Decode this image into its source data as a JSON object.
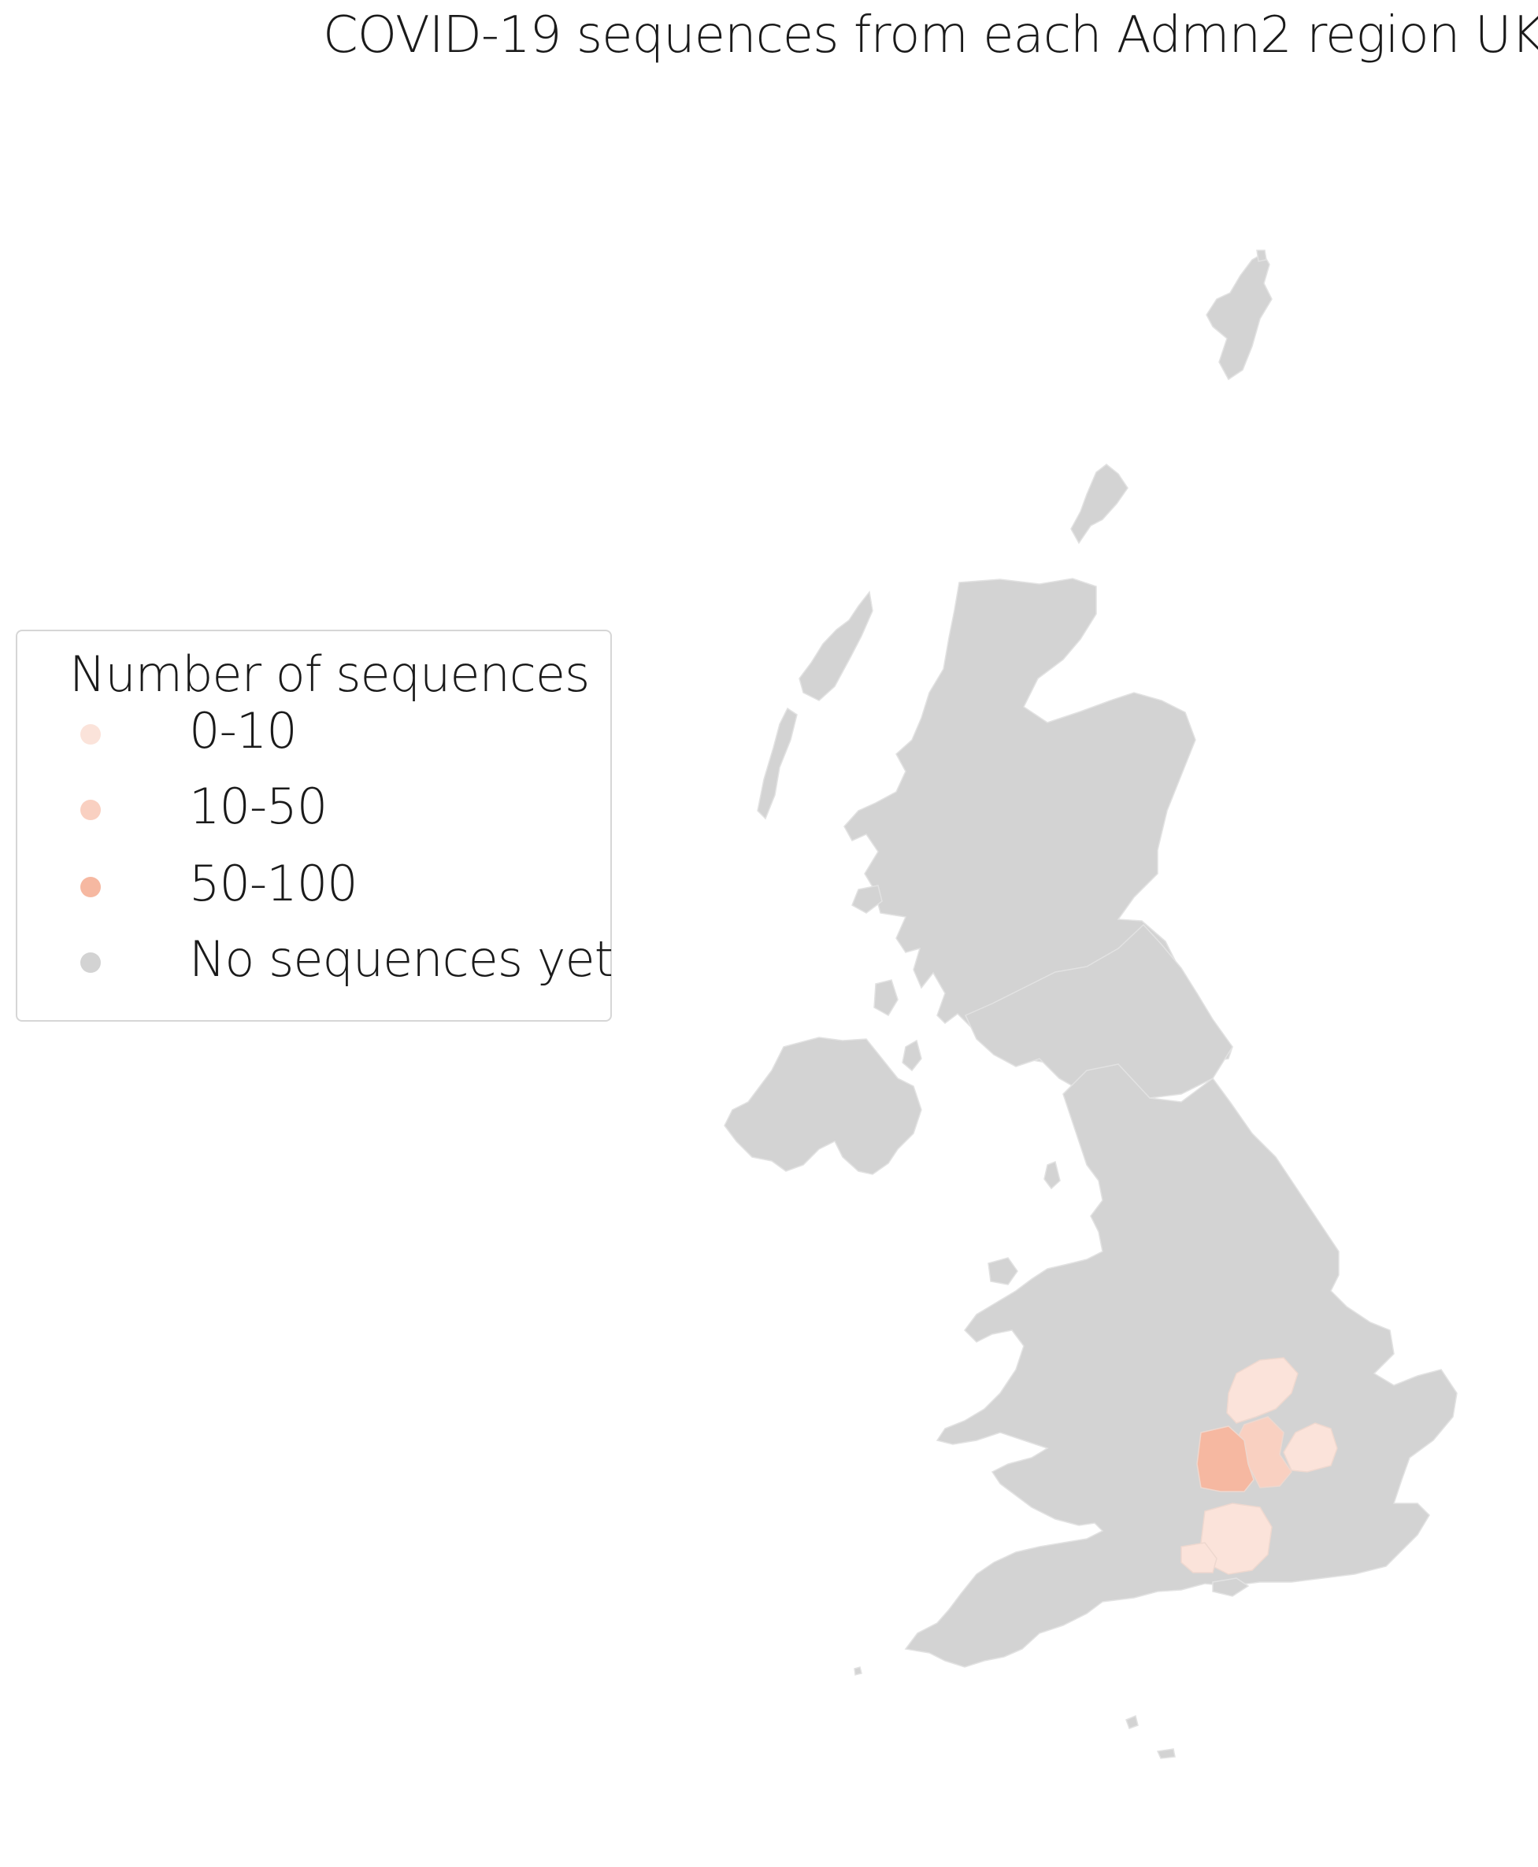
{
  "title": "COVID-19 sequences from each Admn2 region UK",
  "legend": {
    "title": "Number of sequences",
    "items": [
      {
        "label": "0-10",
        "color": "#fbe3da"
      },
      {
        "label": "10-50",
        "color": "#f9d0c1"
      },
      {
        "label": "50-100",
        "color": "#f6b8a1"
      },
      {
        "label": "No sequences yet",
        "color": "#d3d3d3"
      }
    ]
  },
  "colors": {
    "no_data": "#d3d3d3",
    "border": "#e2e2e2"
  },
  "regions_highlighted": [
    {
      "bin": "0-10"
    },
    {
      "bin": "10-50"
    },
    {
      "bin": "50-100"
    }
  ]
}
